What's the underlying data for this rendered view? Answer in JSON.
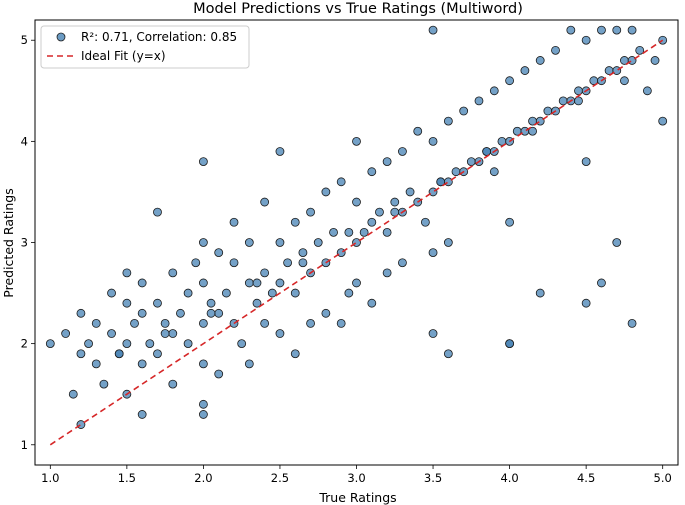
{
  "chart_data": {
    "type": "scatter",
    "title": "Model Predictions vs True Ratings (Multiword)",
    "xlabel": "True Ratings",
    "ylabel": "Predicted Ratings",
    "xlim": [
      0.9,
      5.1
    ],
    "ylim": [
      0.8,
      5.2
    ],
    "xticks": [
      "1.0",
      "1.5",
      "2.0",
      "2.5",
      "3.0",
      "3.5",
      "4.0",
      "4.5",
      "5.0"
    ],
    "yticks": [
      "1",
      "2",
      "3",
      "4",
      "5"
    ],
    "grid": false,
    "legend_position": "top-left",
    "legend": [
      {
        "label": "R²: 0.71, Correlation: 0.85",
        "marker": "circle",
        "color": "#4682b4"
      },
      {
        "label": "Ideal Fit (y=x)",
        "marker": "dashed-line",
        "color": "#d62728"
      }
    ],
    "series": [
      {
        "name": "R²: 0.71, Correlation: 0.85",
        "color": "#4682b4",
        "x": [
          1.0,
          1.1,
          1.2,
          1.2,
          1.2,
          1.25,
          1.3,
          1.3,
          1.35,
          1.4,
          1.4,
          1.45,
          1.5,
          1.5,
          1.5,
          1.5,
          1.55,
          1.6,
          1.6,
          1.6,
          1.6,
          1.65,
          1.7,
          1.7,
          1.7,
          1.75,
          1.8,
          1.8,
          1.8,
          1.85,
          1.9,
          1.9,
          1.95,
          2.0,
          2.0,
          2.0,
          2.0,
          2.0,
          2.0,
          2.05,
          2.1,
          2.1,
          2.1,
          2.15,
          2.2,
          2.2,
          2.2,
          2.25,
          2.3,
          2.3,
          2.3,
          2.35,
          2.4,
          2.4,
          2.4,
          2.45,
          2.5,
          2.5,
          2.5,
          2.5,
          2.55,
          2.6,
          2.6,
          2.6,
          2.65,
          2.7,
          2.7,
          2.7,
          2.75,
          2.8,
          2.8,
          2.8,
          2.85,
          2.9,
          2.9,
          2.95,
          3.0,
          3.0,
          3.0,
          3.0,
          3.05,
          3.1,
          3.1,
          3.1,
          3.15,
          3.2,
          3.2,
          3.2,
          3.25,
          3.3,
          3.3,
          3.3,
          3.35,
          3.4,
          3.4,
          3.45,
          3.5,
          3.5,
          3.5,
          3.5,
          3.55,
          3.6,
          3.6,
          3.6,
          3.65,
          3.7,
          3.7,
          3.75,
          3.8,
          3.8,
          3.85,
          3.9,
          3.9,
          3.95,
          4.0,
          4.0,
          4.0,
          4.0,
          4.05,
          4.1,
          4.1,
          4.15,
          4.2,
          4.2,
          4.25,
          4.3,
          4.3,
          4.35,
          4.4,
          4.4,
          4.45,
          4.5,
          4.5,
          4.5,
          4.55,
          4.6,
          4.6,
          4.65,
          4.7,
          4.7,
          4.75,
          4.8,
          4.8,
          4.85,
          4.9,
          4.95,
          5.0,
          5.0,
          1.15,
          1.45,
          1.75,
          2.05,
          2.35,
          2.65,
          2.95,
          3.25,
          3.55,
          3.85,
          4.15,
          4.45,
          4.75,
          2.0,
          2.9,
          3.5,
          3.6,
          4.0,
          4.5,
          4.8,
          4.2,
          3.9,
          4.6,
          4.7
        ],
        "y": [
          2.0,
          2.1,
          1.2,
          1.9,
          2.3,
          2.0,
          2.2,
          1.8,
          1.6,
          2.1,
          2.5,
          1.9,
          2.0,
          2.4,
          1.5,
          2.7,
          2.2,
          1.8,
          2.3,
          2.6,
          1.3,
          2.0,
          2.4,
          1.9,
          3.3,
          2.2,
          2.1,
          2.7,
          1.6,
          2.3,
          2.5,
          2.0,
          2.8,
          2.2,
          1.8,
          2.6,
          3.0,
          1.4,
          3.8,
          2.4,
          2.3,
          2.9,
          1.7,
          2.5,
          2.2,
          2.8,
          3.2,
          2.0,
          2.6,
          3.0,
          1.8,
          2.4,
          2.7,
          2.2,
          3.4,
          2.5,
          2.6,
          3.0,
          2.1,
          3.9,
          2.8,
          2.5,
          3.2,
          1.9,
          2.9,
          2.7,
          3.3,
          2.2,
          3.0,
          2.8,
          3.5,
          2.3,
          3.1,
          2.9,
          3.6,
          2.5,
          3.0,
          3.4,
          2.6,
          4.0,
          3.1,
          3.2,
          3.7,
          2.4,
          3.3,
          3.1,
          3.8,
          2.7,
          3.4,
          3.3,
          3.9,
          2.8,
          3.5,
          3.4,
          4.1,
          3.2,
          3.5,
          4.0,
          2.9,
          5.1,
          3.6,
          3.6,
          4.2,
          3.0,
          3.7,
          3.7,
          4.3,
          3.8,
          3.8,
          4.4,
          3.9,
          3.9,
          4.5,
          4.0,
          4.0,
          4.6,
          3.2,
          2.0,
          4.1,
          4.1,
          4.7,
          4.2,
          4.2,
          4.8,
          4.3,
          4.3,
          4.9,
          4.4,
          4.4,
          5.1,
          4.5,
          4.5,
          5.0,
          3.8,
          4.6,
          4.6,
          5.1,
          4.7,
          4.7,
          5.1,
          4.8,
          4.8,
          5.1,
          4.9,
          4.5,
          4.8,
          5.0,
          4.2,
          1.5,
          1.9,
          2.1,
          2.3,
          2.6,
          2.8,
          3.1,
          3.3,
          3.6,
          3.9,
          4.1,
          4.4,
          4.6,
          1.3,
          2.2,
          2.1,
          1.9,
          2.0,
          2.4,
          2.2,
          2.5,
          3.7,
          2.6,
          3.0
        ],
        "marker": "circle"
      },
      {
        "name": "Ideal Fit (y=x)",
        "color": "#d62728",
        "x": [
          1.0,
          5.0
        ],
        "y": [
          1.0,
          5.0
        ],
        "line": "dashed"
      }
    ]
  }
}
